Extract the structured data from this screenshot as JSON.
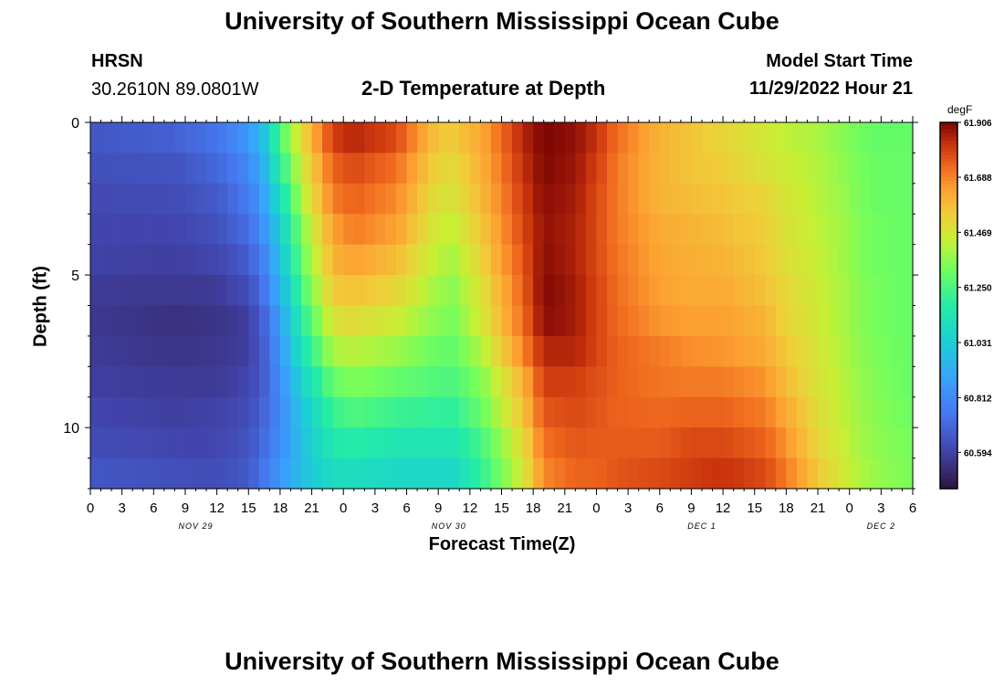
{
  "header": {
    "title": "University of Southern Mississippi Ocean Cube",
    "station": "HRSN",
    "coords": "30.2610N  89.0801W",
    "subtitle": "2-D Temperature at Depth",
    "model_label": "Model Start Time",
    "model_time": "11/29/2022 Hour 21"
  },
  "footer": {
    "title": "University of Southern Mississippi Ocean Cube"
  },
  "colorbar": {
    "unit": "degF",
    "ticks": [
      "61.906",
      "61.688",
      "61.469",
      "61.250",
      "61.031",
      "60.812",
      "60.594"
    ],
    "min": 60.45,
    "max": 61.906
  },
  "chart_data": {
    "type": "heatmap",
    "title": "2-D Temperature at Depth",
    "xlabel": "Forecast Time(Z)",
    "ylabel": "Depth (ft)",
    "x_ticks": [
      "0",
      "3",
      "6",
      "9",
      "12",
      "15",
      "18",
      "21",
      "0",
      "3",
      "6",
      "9",
      "12",
      "15",
      "18",
      "21",
      "0",
      "3",
      "6",
      "9",
      "12",
      "15",
      "18",
      "21",
      "0",
      "3",
      "6"
    ],
    "x_range_hours": [
      0,
      78
    ],
    "date_labels": [
      {
        "text": "NOV 29",
        "hour": 10
      },
      {
        "text": "NOV 30",
        "hour": 34
      },
      {
        "text": "DEC 1",
        "hour": 58
      },
      {
        "text": "DEC 2",
        "hour": 75
      }
    ],
    "y_ticks": [
      "0",
      "5",
      "10"
    ],
    "y_range_ft": [
      0,
      12
    ],
    "depth_levels": 12,
    "time_steps": 78,
    "value_unit": "degF",
    "anchor_hours": [
      0,
      8,
      12,
      15,
      16.5,
      18,
      20,
      23,
      25,
      29,
      33,
      34.5,
      37,
      41,
      43,
      46,
      48,
      50,
      54,
      57,
      60,
      64,
      66,
      69,
      72,
      74,
      78
    ],
    "anchor_values_by_depth": [
      [
        60.65,
        60.68,
        60.74,
        60.85,
        61.0,
        61.25,
        61.5,
        61.8,
        61.84,
        61.78,
        61.55,
        61.55,
        61.62,
        61.84,
        61.906,
        61.88,
        61.82,
        61.72,
        61.6,
        61.56,
        61.52,
        61.46,
        61.43,
        61.4,
        61.34,
        61.3,
        61.3
      ],
      [
        60.63,
        60.64,
        60.7,
        60.8,
        60.95,
        61.18,
        61.45,
        61.74,
        61.78,
        61.72,
        61.52,
        61.51,
        61.6,
        61.82,
        61.9,
        61.87,
        61.8,
        61.7,
        61.6,
        61.56,
        61.54,
        61.48,
        61.45,
        61.41,
        61.35,
        61.31,
        61.3
      ],
      [
        60.61,
        60.62,
        60.66,
        60.76,
        60.9,
        61.1,
        61.4,
        61.7,
        61.74,
        61.68,
        61.48,
        61.48,
        61.58,
        61.8,
        61.89,
        61.86,
        61.78,
        61.7,
        61.6,
        61.58,
        61.56,
        61.52,
        61.47,
        61.42,
        61.36,
        61.31,
        61.3
      ],
      [
        60.6,
        60.6,
        60.63,
        60.72,
        60.85,
        61.03,
        61.34,
        61.64,
        61.7,
        61.64,
        61.45,
        61.44,
        61.55,
        61.78,
        61.88,
        61.85,
        61.78,
        61.7,
        61.62,
        61.6,
        61.58,
        61.54,
        61.48,
        61.43,
        61.37,
        61.32,
        61.3
      ],
      [
        60.59,
        60.58,
        60.6,
        60.67,
        60.8,
        60.98,
        61.3,
        61.6,
        61.64,
        61.58,
        61.42,
        61.4,
        61.52,
        61.76,
        61.89,
        61.85,
        61.78,
        61.71,
        61.63,
        61.61,
        61.6,
        61.55,
        61.49,
        61.44,
        61.37,
        61.32,
        61.3
      ],
      [
        60.57,
        60.56,
        60.57,
        60.62,
        60.75,
        60.93,
        61.24,
        61.55,
        61.57,
        61.52,
        61.38,
        61.36,
        61.48,
        61.74,
        61.9,
        61.86,
        61.79,
        61.72,
        61.64,
        61.62,
        61.62,
        61.57,
        61.51,
        61.45,
        61.38,
        61.33,
        61.3
      ],
      [
        60.56,
        60.54,
        60.55,
        60.58,
        60.7,
        60.88,
        61.18,
        61.48,
        61.5,
        61.45,
        61.35,
        61.33,
        61.46,
        61.72,
        61.89,
        61.86,
        61.79,
        61.73,
        61.66,
        61.64,
        61.64,
        61.6,
        61.52,
        61.46,
        61.38,
        61.33,
        61.3
      ],
      [
        60.57,
        60.55,
        60.56,
        60.58,
        60.68,
        60.85,
        61.12,
        61.4,
        61.42,
        61.38,
        61.3,
        61.3,
        61.4,
        61.68,
        61.84,
        61.84,
        61.79,
        61.74,
        61.7,
        61.67,
        61.66,
        61.62,
        61.55,
        61.47,
        61.39,
        61.34,
        61.3
      ],
      [
        60.58,
        60.57,
        60.57,
        60.6,
        60.68,
        60.82,
        61.05,
        61.3,
        61.34,
        61.3,
        61.26,
        61.26,
        61.34,
        61.6,
        61.8,
        61.8,
        61.77,
        61.74,
        61.71,
        61.7,
        61.7,
        61.66,
        61.58,
        61.48,
        61.4,
        61.35,
        61.3
      ],
      [
        60.6,
        60.58,
        60.59,
        60.62,
        60.7,
        60.8,
        61.0,
        61.22,
        61.26,
        61.22,
        61.2,
        61.2,
        61.3,
        61.56,
        61.76,
        61.78,
        61.76,
        61.74,
        61.73,
        61.74,
        61.74,
        61.7,
        61.62,
        61.5,
        61.41,
        61.36,
        61.31
      ],
      [
        60.62,
        60.6,
        60.6,
        60.64,
        60.72,
        60.82,
        60.98,
        61.16,
        61.18,
        61.14,
        61.14,
        61.14,
        61.24,
        61.5,
        61.72,
        61.76,
        61.75,
        61.75,
        61.75,
        61.78,
        61.78,
        61.74,
        61.66,
        61.52,
        61.42,
        61.37,
        61.32
      ],
      [
        60.65,
        60.63,
        60.62,
        60.66,
        60.75,
        60.85,
        60.98,
        61.1,
        61.1,
        61.08,
        61.08,
        61.08,
        61.2,
        61.46,
        61.68,
        61.74,
        61.74,
        61.76,
        61.78,
        61.8,
        61.82,
        61.78,
        61.7,
        61.55,
        61.44,
        61.38,
        61.33
      ]
    ]
  }
}
